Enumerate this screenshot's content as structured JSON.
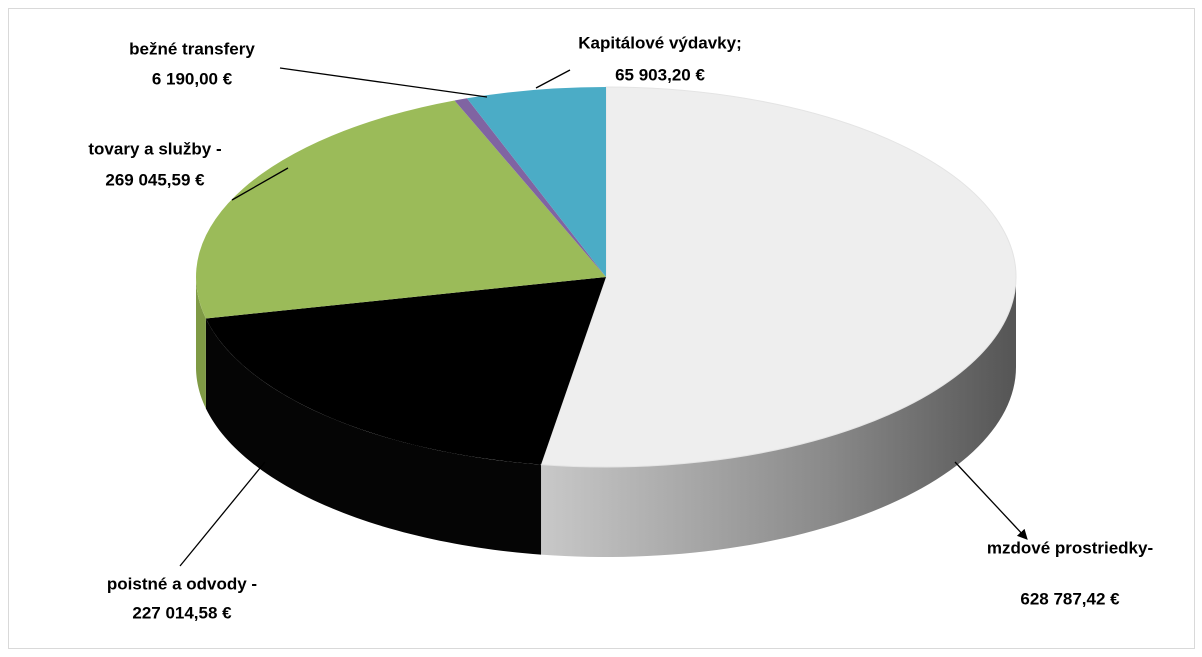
{
  "chart_data": {
    "type": "pie",
    "categories": [
      "mzdové prostriedky-",
      "poistné a odvody -",
      "tovary a služby -",
      "bežné transfery",
      "Kapitálové výdavky;"
    ],
    "values": [
      628787.42,
      227014.58,
      269045.59,
      6190.0,
      65903.2
    ],
    "value_labels": [
      "628 787,42 €",
      "227 014,58 €",
      "269 045,59 €",
      "6 190,00 €",
      "65 903,20 €"
    ],
    "colors": [
      "#eeeeee",
      "#000000",
      "#9bbb59",
      "#8064a2",
      "#4bacc6"
    ]
  }
}
